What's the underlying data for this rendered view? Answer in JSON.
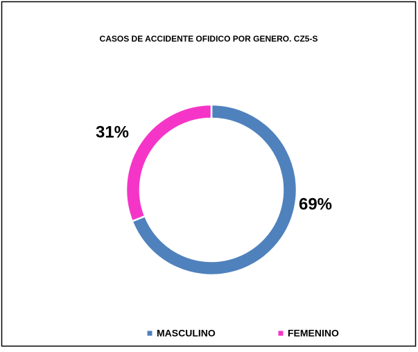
{
  "chart_data": {
    "type": "donut",
    "title": "CASOS DE ACCIDENTE OFIDICO POR GENERO. CZ5-S",
    "categories": [
      "MASCULINO",
      "FEMENINO"
    ],
    "values": [
      69,
      31
    ],
    "value_labels": [
      "69%",
      "31%"
    ],
    "colors": [
      "#4f81bd",
      "#f535c8"
    ],
    "legend": "bottom"
  }
}
